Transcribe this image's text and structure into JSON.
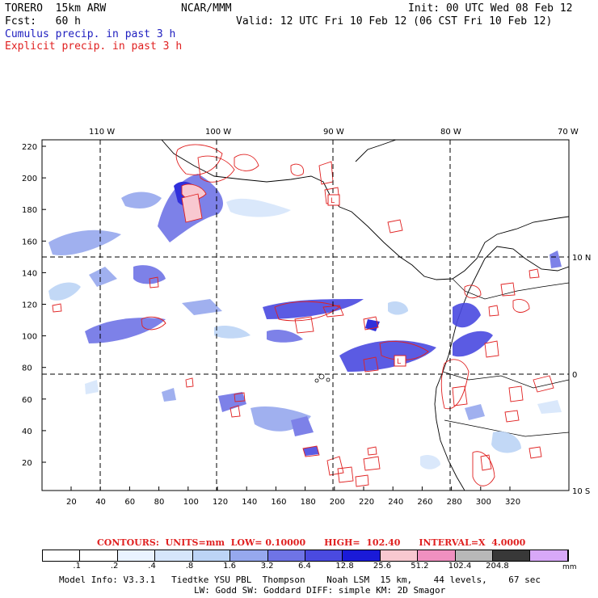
{
  "header": {
    "model": "TORERO  15km ARW",
    "org": "NCAR/MMM",
    "init": "Init: 00 UTC Wed 08 Feb 12",
    "fcst": "Fcst:   60 h",
    "valid": "Valid: 12 UTC Fri 10 Feb 12 (06 CST Fri 10 Feb 12)",
    "line_blue": "Cumulus precip. in past 3 h",
    "line_red": "Explicit precip. in past 3 h"
  },
  "axes": {
    "top_lon": [
      "110 W",
      "100 W",
      "90 W",
      "80 W",
      "70 W"
    ],
    "right_lat": [
      "10 N",
      "0",
      "10 S"
    ],
    "left_y": [
      "220",
      "200",
      "180",
      "160",
      "140",
      "120",
      "100",
      "80",
      "60",
      "40",
      "20"
    ],
    "bottom_x": [
      "20",
      "40",
      "60",
      "80",
      "100",
      "120",
      "140",
      "160",
      "180",
      "200",
      "220",
      "240",
      "260",
      "280",
      "300",
      "320"
    ]
  },
  "markers": [
    "L",
    "L"
  ],
  "contours_line": "CONTOURS:  UNITS=mm  LOW= 0.10000      HIGH=  102.40      INTERVAL=X  4.0000",
  "colorbar": {
    "labels": [
      ".1",
      ".2",
      ".4",
      ".8",
      "1.6",
      "3.2",
      "6.4",
      "12.8",
      "25.6",
      "51.2",
      "102.4",
      "204.8"
    ],
    "unit": "mm",
    "colors": [
      "#ffffff",
      "#ffffff",
      "#eaf3ff",
      "#d6e6fb",
      "#bcd4f6",
      "#96a8ee",
      "#6f74e6",
      "#4a4ae0",
      "#1a1ad8",
      "#f8c8d0",
      "#f090c0",
      "#b8b8b8",
      "#383838",
      "#d8a8f8"
    ]
  },
  "footer": {
    "line1": "Model Info: V3.3.1   Tiedtke YSU PBL  Thompson    Noah LSM  15 km,    44 levels,    67 sec",
    "line2": "LW: Godd SW: Goddard DIFF: simple KM: 2D Smagor"
  }
}
